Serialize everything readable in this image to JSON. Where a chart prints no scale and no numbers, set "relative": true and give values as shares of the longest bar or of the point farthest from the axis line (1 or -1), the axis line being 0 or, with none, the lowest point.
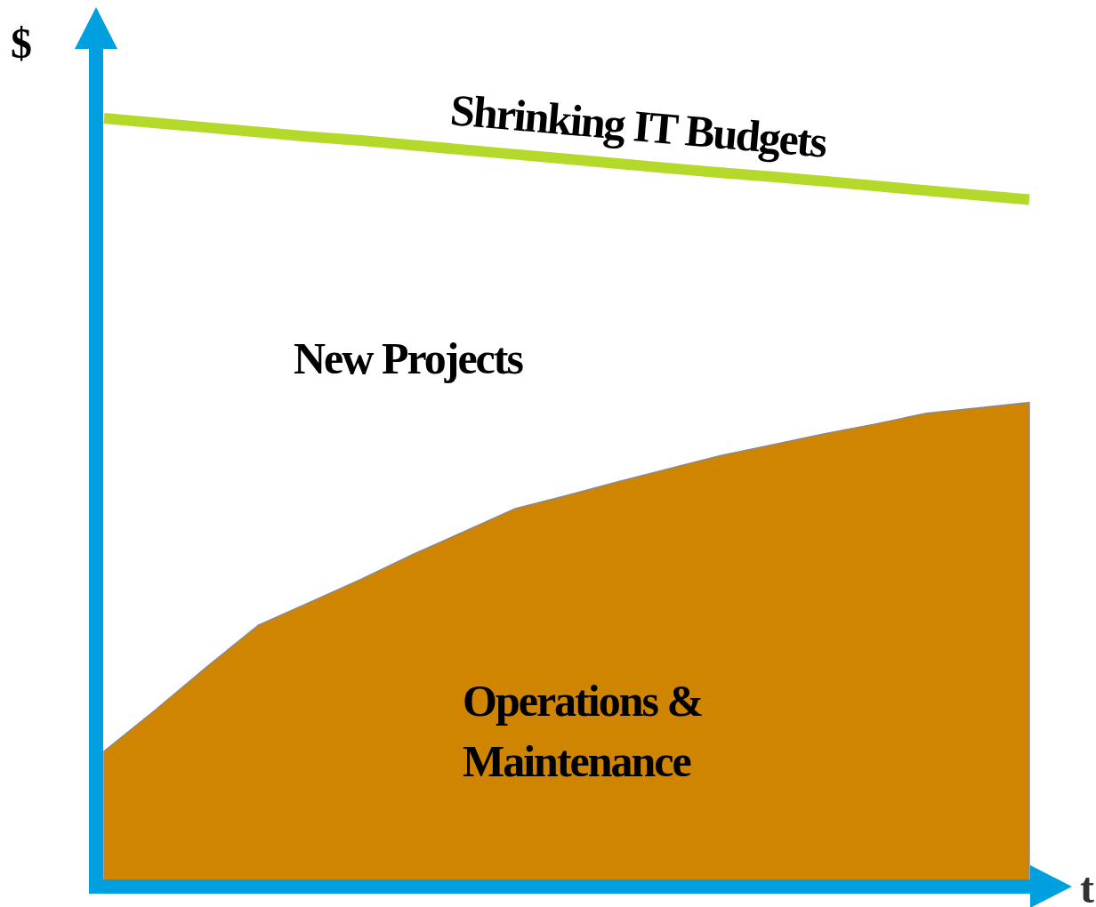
{
  "chart_data": {
    "type": "area",
    "relative": true,
    "xlabel": "t",
    "ylabel": "$",
    "categories": [
      null,
      null,
      null,
      null,
      null,
      null,
      null,
      null,
      null,
      null,
      null,
      null,
      null,
      null,
      null,
      null,
      null,
      null,
      null
    ],
    "series": [
      {
        "name": "Operations & Maintenance",
        "color": "#cf8500",
        "values": [
          0.176,
          0.23,
          0.286,
          0.34,
          0.37,
          0.4,
          0.432,
          0.462,
          0.492,
          0.509,
          0.527,
          0.544,
          0.561,
          0.575,
          0.589,
          0.602,
          0.616,
          0.623,
          0.63
        ]
      },
      {
        "name": "Shrinking IT Budgets",
        "type": "line",
        "color": "#b5d92a",
        "values": [
          1,
          0.994,
          0.988,
          0.982,
          0.976,
          0.971,
          0.965,
          0.959,
          0.953,
          0.947,
          0.941,
          0.935,
          0.929,
          0.924,
          0.918,
          0.912,
          0.906,
          0.9,
          0.894
        ]
      }
    ],
    "annotations": [
      "New Projects"
    ]
  }
}
